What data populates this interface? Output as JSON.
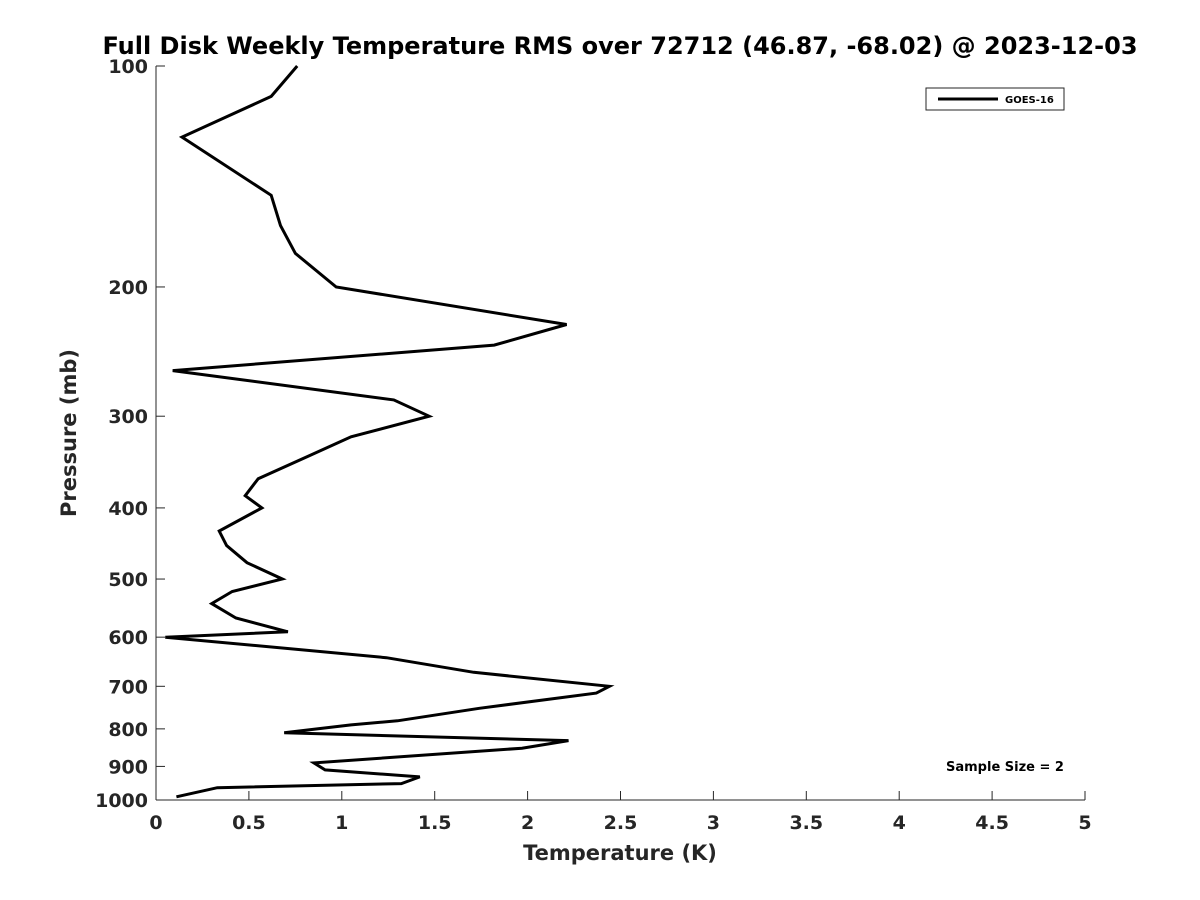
{
  "chart_data": {
    "type": "line",
    "title": "Full Disk Weekly Temperature RMS over 72712 (46.87, -68.02) @ 2023-12-03",
    "xlabel": "Temperature (K)",
    "ylabel": "Pressure (mb)",
    "xlim": [
      0,
      5
    ],
    "ylim": [
      100,
      1000
    ],
    "y_scale": "log",
    "y_reversed": true,
    "x_ticks": [
      "0",
      "0.5",
      "1",
      "1.5",
      "2",
      "2.5",
      "3",
      "3.5",
      "4",
      "4.5",
      "5"
    ],
    "y_ticks": [
      "100",
      "200",
      "300",
      "400",
      "500",
      "600",
      "700",
      "800",
      "900",
      "1000"
    ],
    "grid": false,
    "legend_position": "top-right",
    "annotation": "Sample Size = 2",
    "series": [
      {
        "name": "GOES-16",
        "color": "#000000",
        "x": [
          0.76,
          0.62,
          0.14,
          0.62,
          0.67,
          0.75,
          0.97,
          2.21,
          1.82,
          0.09,
          1.28,
          1.47,
          1.05,
          0.82,
          0.55,
          0.48,
          0.57,
          0.34,
          0.38,
          0.49,
          0.68,
          0.41,
          0.3,
          0.43,
          0.71,
          0.05,
          1.24,
          1.71,
          2.44,
          2.37,
          1.74,
          1.3,
          1.05,
          0.69,
          2.22,
          1.97,
          0.85,
          0.91,
          1.42,
          1.32,
          0.33,
          0.11
        ],
        "y": [
          100,
          110,
          125,
          150,
          165,
          180,
          200,
          225,
          240,
          260,
          285,
          300,
          320,
          340,
          365,
          385,
          400,
          430,
          450,
          475,
          500,
          520,
          540,
          565,
          590,
          600,
          640,
          670,
          700,
          715,
          750,
          780,
          790,
          810,
          830,
          850,
          890,
          910,
          930,
          950,
          962,
          990
        ]
      }
    ]
  }
}
